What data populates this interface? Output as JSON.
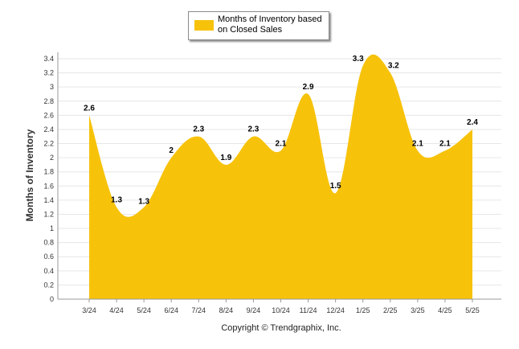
{
  "chart_data": {
    "type": "area",
    "categories": [
      "3/24",
      "4/24",
      "5/24",
      "6/24",
      "7/24",
      "8/24",
      "9/24",
      "10/24",
      "11/24",
      "12/24",
      "1/25",
      "2/25",
      "3/25",
      "4/25",
      "5/25"
    ],
    "series": [
      {
        "name": "Months of Inventory based on Closed Sales",
        "values": [
          2.6,
          1.3,
          1.3,
          2,
          2.3,
          1.9,
          2.3,
          2.1,
          2.9,
          1.5,
          3.3,
          3.2,
          2.1,
          2.1,
          2.4
        ]
      }
    ],
    "data_labels": [
      "2.6",
      "1.3",
      "1.3",
      "2",
      "2.3",
      "1.9",
      "2.3",
      "2.1",
      "2.9",
      "1.5",
      "3.3",
      "3.2",
      "2.1",
      "2.1",
      "2.4"
    ],
    "ylabel": "Months of Inventory",
    "xlabel": "",
    "ylim": [
      0,
      3.4
    ],
    "yticks": [
      "0",
      "0.2",
      "0.4",
      "0.6",
      "0.8",
      "1",
      "1.2",
      "1.4",
      "1.6",
      "1.8",
      "2",
      "2.2",
      "2.4",
      "2.6",
      "2.8",
      "3",
      "3.2",
      "3.4"
    ],
    "legend_position": "top-center",
    "grid": true,
    "series_color": "#F7C20A"
  },
  "legend": {
    "label": "Months of Inventory based on Closed Sales"
  },
  "footer": {
    "copyright": "Copyright © Trendgraphix, Inc."
  }
}
